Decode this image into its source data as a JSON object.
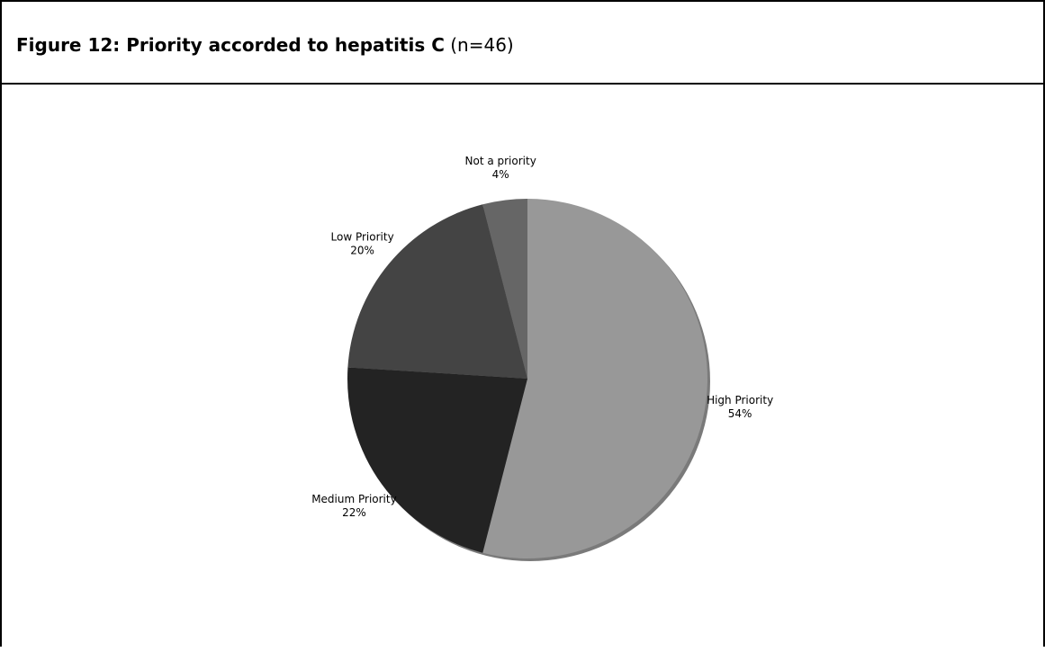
{
  "figure": {
    "caption_bold": "Figure 12: Priority accorded to hepatitis C",
    "caption_normal": "(n=46)"
  },
  "chart_data": {
    "type": "pie",
    "title": "",
    "slices": [
      {
        "label": "High Priority",
        "value": 54,
        "pct_label": "54%",
        "color": "#989898"
      },
      {
        "label": "Medium Priority",
        "value": 22,
        "pct_label": "22%",
        "color": "#232323"
      },
      {
        "label": "Low Priority",
        "value": 20,
        "pct_label": "20%",
        "color": "#444444"
      },
      {
        "label": "Not a priority",
        "value": 4,
        "pct_label": "4%",
        "color": "#666666"
      }
    ],
    "start_angle": "12 o'clock",
    "direction": "clockwise",
    "legend": "none",
    "labels": "outside slices"
  }
}
